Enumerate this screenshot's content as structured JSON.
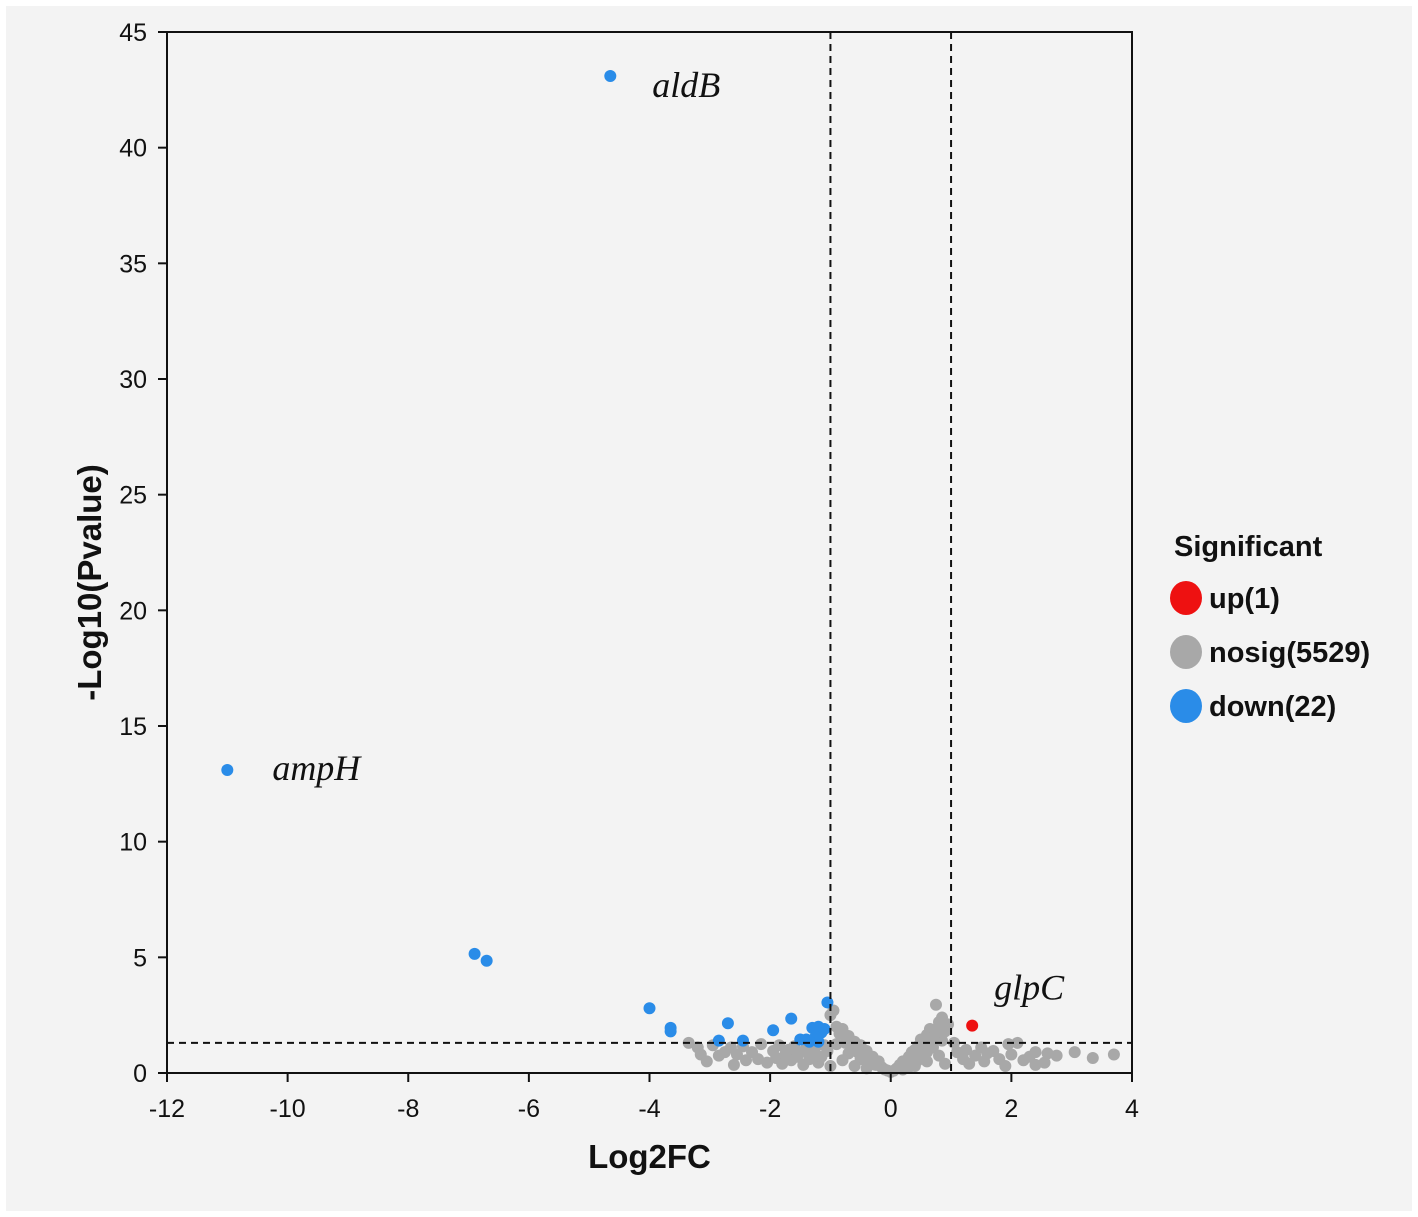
{
  "chart_data": {
    "type": "scatter",
    "title": "",
    "xlabel": "Log2FC",
    "ylabel": "-Log10(Pvalue)",
    "xlim": [
      -12,
      4
    ],
    "ylim": [
      0,
      45
    ],
    "x_ticks": [
      -12,
      -10,
      -8,
      -6,
      -4,
      -2,
      0,
      2,
      4
    ],
    "y_ticks": [
      0,
      5,
      10,
      15,
      20,
      25,
      30,
      35,
      40,
      45
    ],
    "grid": false,
    "thresholds": {
      "log2fc_lines": [
        -1,
        1
      ],
      "pvalue_line": 1.3,
      "line_style": "dashed"
    },
    "legend": {
      "title": "Significant",
      "position": "right",
      "entries": [
        {
          "label": "up(1)",
          "color": "#ee1111"
        },
        {
          "label": "nosig(5529)",
          "color": "#a8a8a8"
        },
        {
          "label": "down(22)",
          "color": "#2a8ce8"
        }
      ]
    },
    "series": [
      {
        "name": "up(1)",
        "color": "#ee1111",
        "points": [
          [
            1.35,
            2.05
          ]
        ]
      },
      {
        "name": "down(22)",
        "color": "#2a8ce8",
        "points": [
          [
            -4.65,
            43.1
          ],
          [
            -11.0,
            13.1
          ],
          [
            -6.9,
            5.15
          ],
          [
            -6.7,
            4.85
          ],
          [
            -4.0,
            2.8
          ],
          [
            -3.65,
            1.95
          ],
          [
            -3.65,
            1.8
          ],
          [
            -2.85,
            1.4
          ],
          [
            -2.7,
            2.15
          ],
          [
            -2.45,
            1.4
          ],
          [
            -1.95,
            1.85
          ],
          [
            -1.65,
            2.35
          ],
          [
            -1.5,
            1.45
          ],
          [
            -1.4,
            1.45
          ],
          [
            -1.3,
            1.95
          ],
          [
            -1.2,
            2.0
          ],
          [
            -1.15,
            1.75
          ],
          [
            -1.25,
            1.55
          ],
          [
            -1.1,
            1.9
          ],
          [
            -1.05,
            3.05
          ],
          [
            -1.2,
            1.35
          ],
          [
            -1.35,
            1.35
          ]
        ]
      },
      {
        "name": "nosig(5529)",
        "color": "#a8a8a8",
        "note_points": "representative subset",
        "points": [
          [
            -3.35,
            1.3
          ],
          [
            -3.2,
            1.1
          ],
          [
            -3.15,
            0.8
          ],
          [
            -3.05,
            0.5
          ],
          [
            -2.95,
            1.2
          ],
          [
            -2.85,
            0.75
          ],
          [
            -2.75,
            0.9
          ],
          [
            -2.65,
            1.1
          ],
          [
            -2.6,
            0.35
          ],
          [
            -2.55,
            0.8
          ],
          [
            -2.45,
            1.15
          ],
          [
            -2.4,
            0.55
          ],
          [
            -2.3,
            0.9
          ],
          [
            -2.2,
            0.6
          ],
          [
            -2.15,
            1.25
          ],
          [
            -2.05,
            0.45
          ],
          [
            -1.95,
            0.95
          ],
          [
            -1.9,
            0.65
          ],
          [
            -1.85,
            1.2
          ],
          [
            -1.8,
            0.4
          ],
          [
            -1.75,
            0.8
          ],
          [
            -1.7,
            1.0
          ],
          [
            -1.65,
            0.55
          ],
          [
            -1.6,
            1.15
          ],
          [
            -1.55,
            0.7
          ],
          [
            -1.5,
            0.9
          ],
          [
            -1.45,
            0.35
          ],
          [
            -1.4,
            1.05
          ],
          [
            -1.35,
            0.6
          ],
          [
            -1.3,
            0.85
          ],
          [
            -1.25,
            1.1
          ],
          [
            -1.2,
            0.45
          ],
          [
            -1.15,
            0.7
          ],
          [
            -1.1,
            1.2
          ],
          [
            -1.05,
            0.95
          ],
          [
            -1.0,
            2.5
          ],
          [
            -0.95,
            2.7
          ],
          [
            -0.9,
            2.0
          ],
          [
            -0.85,
            1.7
          ],
          [
            -0.8,
            1.9
          ],
          [
            -0.75,
            1.3
          ],
          [
            -0.7,
            1.6
          ],
          [
            -0.65,
            1.1
          ],
          [
            -0.6,
            1.35
          ],
          [
            -0.55,
            0.9
          ],
          [
            -0.5,
            1.2
          ],
          [
            -0.45,
            0.7
          ],
          [
            -0.4,
            0.95
          ],
          [
            -0.35,
            0.5
          ],
          [
            -0.3,
            0.7
          ],
          [
            -0.25,
            0.35
          ],
          [
            -0.2,
            0.5
          ],
          [
            -0.15,
            0.25
          ],
          [
            -0.1,
            0.15
          ],
          [
            -0.05,
            0.1
          ],
          [
            0.0,
            0.05
          ],
          [
            0.05,
            0.1
          ],
          [
            0.1,
            0.2
          ],
          [
            0.15,
            0.35
          ],
          [
            0.2,
            0.5
          ],
          [
            0.25,
            0.45
          ],
          [
            0.3,
            0.7
          ],
          [
            0.35,
            0.9
          ],
          [
            0.4,
            1.0
          ],
          [
            0.45,
            1.15
          ],
          [
            0.5,
            1.45
          ],
          [
            0.55,
            1.3
          ],
          [
            0.6,
            1.65
          ],
          [
            0.65,
            1.9
          ],
          [
            0.7,
            1.55
          ],
          [
            0.75,
            2.95
          ],
          [
            0.8,
            2.2
          ],
          [
            0.85,
            2.4
          ],
          [
            0.9,
            1.8
          ],
          [
            0.95,
            2.1
          ],
          [
            -0.9,
            1.25
          ],
          [
            -0.7,
            0.85
          ],
          [
            -0.5,
            0.6
          ],
          [
            -0.3,
            0.4
          ],
          [
            -0.6,
            0.3
          ],
          [
            -0.8,
            0.55
          ],
          [
            -1.0,
            0.3
          ],
          [
            -0.4,
            0.2
          ],
          [
            0.2,
            0.15
          ],
          [
            0.4,
            0.3
          ],
          [
            0.6,
            0.5
          ],
          [
            0.8,
            0.75
          ],
          [
            0.5,
            0.85
          ],
          [
            0.3,
            0.25
          ],
          [
            0.7,
            1.1
          ],
          [
            0.9,
            0.4
          ],
          [
            0.6,
            0.9
          ],
          [
            0.85,
            1.4
          ],
          [
            0.45,
            0.55
          ],
          [
            0.75,
            1.75
          ],
          [
            1.05,
            1.3
          ],
          [
            1.1,
            0.9
          ],
          [
            1.2,
            0.6
          ],
          [
            1.25,
            1.0
          ],
          [
            1.3,
            0.4
          ],
          [
            1.4,
            0.75
          ],
          [
            1.5,
            1.1
          ],
          [
            1.55,
            0.5
          ],
          [
            1.6,
            0.85
          ],
          [
            1.7,
            0.95
          ],
          [
            1.8,
            0.6
          ],
          [
            1.9,
            0.3
          ],
          [
            1.95,
            1.25
          ],
          [
            2.0,
            0.8
          ],
          [
            2.1,
            1.3
          ],
          [
            2.2,
            0.55
          ],
          [
            2.3,
            0.7
          ],
          [
            2.4,
            0.35
          ],
          [
            2.4,
            0.9
          ],
          [
            2.6,
            0.85
          ],
          [
            2.75,
            0.75
          ],
          [
            3.05,
            0.9
          ],
          [
            3.35,
            0.65
          ],
          [
            3.7,
            0.8
          ],
          [
            2.55,
            0.45
          ]
        ]
      }
    ],
    "annotations": [
      {
        "text": "aldB",
        "x": -4.65,
        "y": 43.1
      },
      {
        "text": "ampH",
        "x": -11.0,
        "y": 13.1
      },
      {
        "text": "glpC",
        "x": 1.35,
        "y": 2.05
      }
    ]
  }
}
